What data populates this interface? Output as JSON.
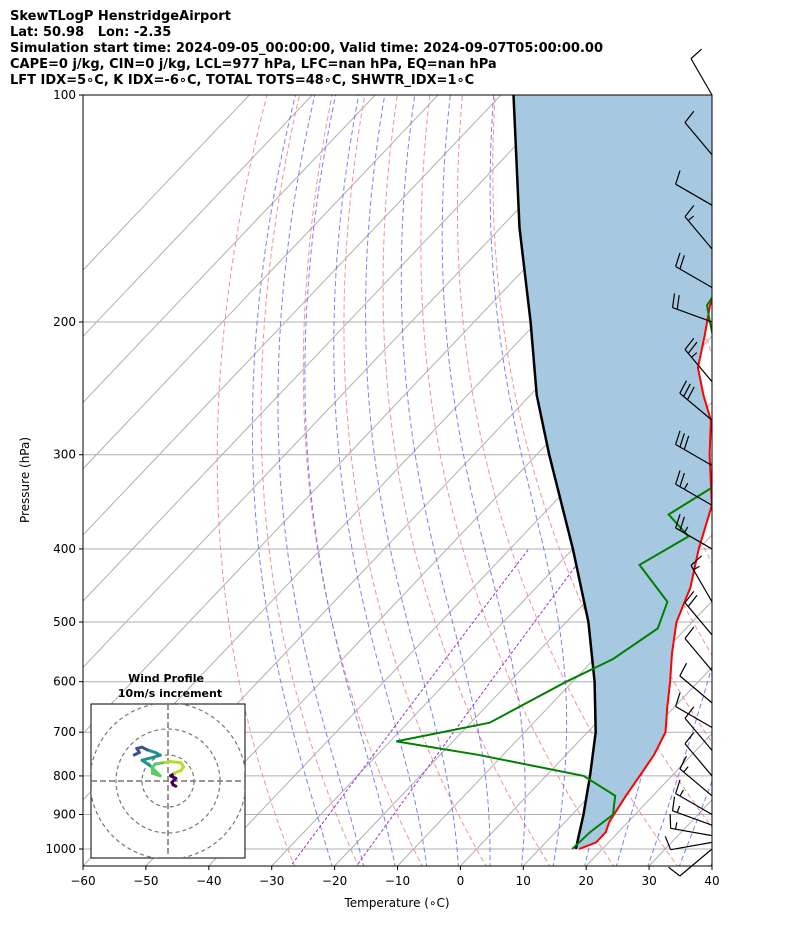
{
  "header": {
    "line1": "SkewTLogP HenstridgeAirport",
    "line2": "Lat: 50.98   Lon: -2.35",
    "line3": "Simulation start time: 2024-09-05_00:00:00, Valid time: 2024-09-07T05:00:00.00",
    "line4": "CAPE=0 j/kg, CIN=0 j/kg, LCL=977 hPa, LFC=nan hPa, EQ=nan hPa",
    "line5": "LFT IDX=5∘C, K IDX=-6∘C, TOTAL TOTS=48∘C, SHWTR_IDX=1∘C"
  },
  "inset": {
    "title": "Wind Profile",
    "subtitle": "10m/s increment"
  },
  "chart_data": {
    "type": "skew-t",
    "xlabel": "Temperature (∘C)",
    "ylabel": "Pressure (hPa)",
    "xlim": [
      -60,
      40
    ],
    "ylim": [
      1040,
      100
    ],
    "x_ticks": [
      -60,
      -50,
      -40,
      -30,
      -20,
      -10,
      0,
      10,
      20,
      30,
      40
    ],
    "y_ticks": [
      1000,
      900,
      800,
      700,
      600,
      500,
      400,
      300,
      200,
      100
    ],
    "grid": true,
    "colors": {
      "temperature": "#ff0000",
      "dewpoint": "#008000",
      "parcel": "#000000",
      "cape_fill": "#a6c8e0",
      "dry_adiabat": "#f08080",
      "moist_adiabat": "#6666ff",
      "mixing_ratio": "#9933cc"
    },
    "temperature": [
      [
        1000,
        16.3
      ],
      [
        980,
        18.0
      ],
      [
        950,
        18.0
      ],
      [
        920,
        17.0
      ],
      [
        850,
        15.7
      ],
      [
        800,
        14.9
      ],
      [
        750,
        14.0
      ],
      [
        700,
        12.4
      ],
      [
        650,
        9.0
      ],
      [
        600,
        5.5
      ],
      [
        550,
        1.5
      ],
      [
        500,
        -2.5
      ],
      [
        450,
        -5.5
      ],
      [
        400,
        -10.0
      ],
      [
        350,
        -14.5
      ],
      [
        300,
        -22.5
      ],
      [
        270,
        -27.5
      ],
      [
        250,
        -32.5
      ],
      [
        230,
        -37.5
      ],
      [
        210,
        -41.0
      ],
      [
        190,
        -45.0
      ],
      [
        170,
        -48.0
      ],
      [
        160,
        -50.0
      ],
      [
        150,
        -52.0
      ],
      [
        140,
        -56.0
      ],
      [
        130,
        -58.5
      ],
      [
        120,
        -61.5
      ],
      [
        110,
        -65.5
      ],
      [
        100,
        -68.5
      ]
    ],
    "dewpoint": [
      [
        1000,
        15.2
      ],
      [
        950,
        15.5
      ],
      [
        900,
        16.5
      ],
      [
        880,
        15.5
      ],
      [
        850,
        14.0
      ],
      [
        800,
        6.0
      ],
      [
        750,
        -14.0
      ],
      [
        720,
        -29.0
      ],
      [
        680,
        -17.0
      ],
      [
        600,
        -11.0
      ],
      [
        560,
        -7.0
      ],
      [
        510,
        -4.5
      ],
      [
        470,
        -7.0
      ],
      [
        420,
        -17.0
      ],
      [
        385,
        -13.5
      ],
      [
        360,
        -20.0
      ],
      [
        330,
        -17.0
      ],
      [
        305,
        -17.0
      ],
      [
        280,
        -22.0
      ],
      [
        250,
        -27.0
      ],
      [
        230,
        -34.0
      ],
      [
        200,
        -42.5
      ],
      [
        190,
        -45.5
      ],
      [
        170,
        -47.0
      ],
      [
        150,
        -46.0
      ],
      [
        130,
        -45.5
      ],
      [
        110,
        -44.0
      ],
      [
        100,
        -44.5
      ]
    ],
    "parcel": [
      [
        1000,
        15.8
      ],
      [
        977,
        14.9
      ],
      [
        900,
        11.8
      ],
      [
        800,
        7.0
      ],
      [
        700,
        1.3
      ],
      [
        600,
        -6.5
      ],
      [
        500,
        -16.5
      ],
      [
        400,
        -30.0
      ],
      [
        300,
        -48.0
      ],
      [
        250,
        -59.0
      ],
      [
        200,
        -71.0
      ],
      [
        150,
        -87.0
      ],
      [
        100,
        -108.0
      ]
    ],
    "wind_barbs": [
      {
        "p": 1000,
        "speed_kt": 10,
        "dir": 230
      },
      {
        "p": 980,
        "speed_kt": 10,
        "dir": 260
      },
      {
        "p": 960,
        "speed_kt": 15,
        "dir": 280
      },
      {
        "p": 930,
        "speed_kt": 15,
        "dir": 290
      },
      {
        "p": 900,
        "speed_kt": 15,
        "dir": 300
      },
      {
        "p": 850,
        "speed_kt": 15,
        "dir": 310
      },
      {
        "p": 800,
        "speed_kt": 10,
        "dir": 320
      },
      {
        "p": 740,
        "speed_kt": 10,
        "dir": 320
      },
      {
        "p": 690,
        "speed_kt": 10,
        "dir": 300
      },
      {
        "p": 640,
        "speed_kt": 10,
        "dir": 310
      },
      {
        "p": 580,
        "speed_kt": 10,
        "dir": 320
      },
      {
        "p": 520,
        "speed_kt": 20,
        "dir": 320
      },
      {
        "p": 470,
        "speed_kt": 15,
        "dir": 330
      },
      {
        "p": 400,
        "speed_kt": 25,
        "dir": 300
      },
      {
        "p": 350,
        "speed_kt": 25,
        "dir": 300
      },
      {
        "p": 310,
        "speed_kt": 30,
        "dir": 300
      },
      {
        "p": 270,
        "speed_kt": 30,
        "dir": 310
      },
      {
        "p": 240,
        "speed_kt": 25,
        "dir": 320
      },
      {
        "p": 200,
        "speed_kt": 20,
        "dir": 290
      },
      {
        "p": 180,
        "speed_kt": 20,
        "dir": 300
      },
      {
        "p": 160,
        "speed_kt": 15,
        "dir": 320
      },
      {
        "p": 140,
        "speed_kt": 10,
        "dir": 300
      },
      {
        "p": 120,
        "speed_kt": 10,
        "dir": 320
      },
      {
        "p": 100,
        "speed_kt": 10,
        "dir": 330
      }
    ],
    "hodograph": {
      "rings_ms": [
        10,
        20,
        30
      ],
      "points_ms": [
        [
          3.0,
          -2.0
        ],
        [
          2.0,
          -1.5
        ],
        [
          1.5,
          -0.5
        ],
        [
          2.5,
          0.5
        ],
        [
          3.0,
          1.0
        ],
        [
          2.0,
          1.5
        ],
        [
          1.0,
          2.0
        ],
        [
          2.5,
          3.0
        ],
        [
          3.5,
          3.5
        ],
        [
          5.0,
          4.0
        ],
        [
          6.0,
          5.5
        ],
        [
          5.0,
          7.0
        ],
        [
          1.0,
          7.5
        ],
        [
          -2.0,
          7.0
        ],
        [
          -5.0,
          6.5
        ],
        [
          -6.0,
          5.0
        ],
        [
          -6.0,
          3.0
        ],
        [
          -3.0,
          2.0
        ],
        [
          -7.0,
          6.0
        ],
        [
          -10.0,
          8.0
        ],
        [
          -6.0,
          9.0
        ],
        [
          -3.0,
          10.0
        ],
        [
          -5.0,
          11.0
        ],
        [
          -8.0,
          12.0
        ],
        [
          -10.0,
          13.0
        ],
        [
          -12.0,
          12.5
        ],
        [
          -11.0,
          11.0
        ],
        [
          -13.0,
          10.0
        ]
      ]
    }
  }
}
